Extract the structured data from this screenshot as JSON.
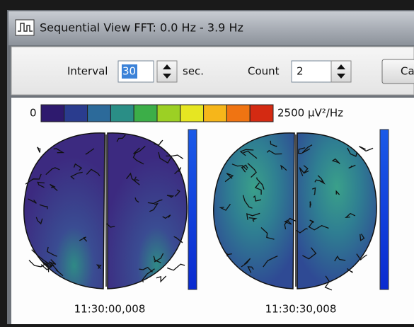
{
  "header": {
    "title": "Sequential View FFT: 0.0 Hz - 3.9 Hz"
  },
  "toolbar": {
    "interval_label": "Interval",
    "interval_value": "30",
    "interval_unit": "sec.",
    "count_label": "Count",
    "count_value": "2",
    "button": "Ca"
  },
  "colorbar": {
    "min_label": "0",
    "max_label": "2500 µV²/Hz",
    "colors": [
      "#2e1a6e",
      "#2a3c8e",
      "#2c6a9a",
      "#2a8e86",
      "#3cae48",
      "#9cd024",
      "#e6e622",
      "#f6b61a",
      "#f07412",
      "#d42a12"
    ]
  },
  "maps": [
    {
      "timestamp": "11:30:00,008"
    },
    {
      "timestamp": "11:30:30,008"
    }
  ]
}
